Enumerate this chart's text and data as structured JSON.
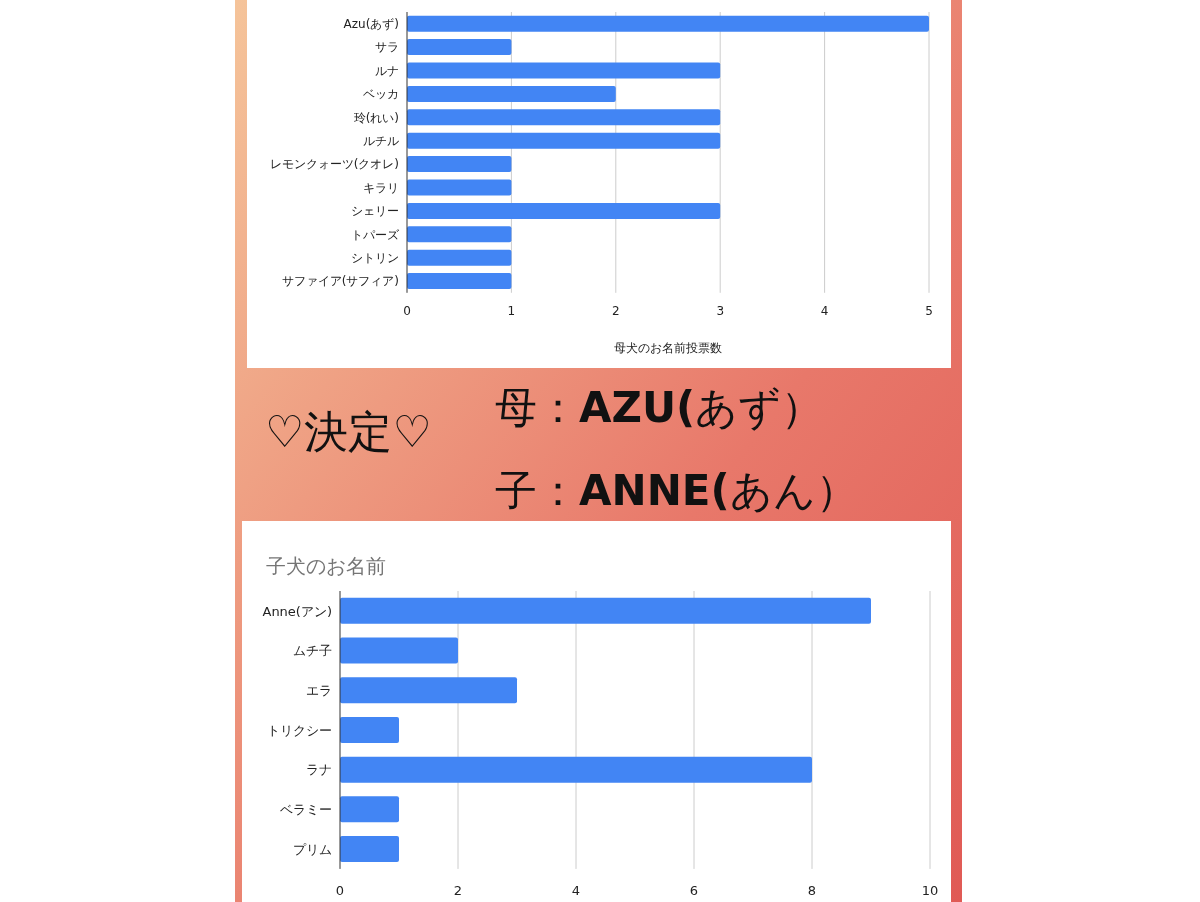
{
  "chart_data": [
    {
      "type": "bar",
      "orientation": "horizontal",
      "categories": [
        "Azu(あず)",
        "サラ",
        "ルナ",
        "ベッカ",
        "玲(れい)",
        "ルチル",
        "レモンクォーツ(クオレ)",
        "キラリ",
        "シェリー",
        "トパーズ",
        "シトリン",
        "サファイア(サフィア)"
      ],
      "values": [
        5,
        1,
        3,
        2,
        3,
        3,
        1,
        1,
        3,
        1,
        1,
        1
      ],
      "color": "#4285f4",
      "xlim": [
        0,
        5
      ],
      "xticks": [
        0,
        1,
        2,
        3,
        4,
        5
      ],
      "xlabel": "母犬のお名前投票数",
      "grid": "x"
    },
    {
      "type": "other",
      "annotations": [
        "♡決定♡",
        "母：**AZU(**あず）",
        "子：**ANNE(**あん）"
      ]
    },
    {
      "type": "bar",
      "orientation": "horizontal",
      "title": "子犬のお名前",
      "categories": [
        "Anne(アン)",
        "ムチ子",
        "エラ",
        "トリクシー",
        "ラナ",
        "ベラミー",
        "プリム"
      ],
      "values": [
        9,
        2,
        3,
        1,
        8,
        1,
        1
      ],
      "color": "#4285f4",
      "xlim": [
        0,
        10
      ],
      "xticks": [
        0,
        2,
        4,
        6,
        8,
        10
      ],
      "grid": "x"
    }
  ]
}
